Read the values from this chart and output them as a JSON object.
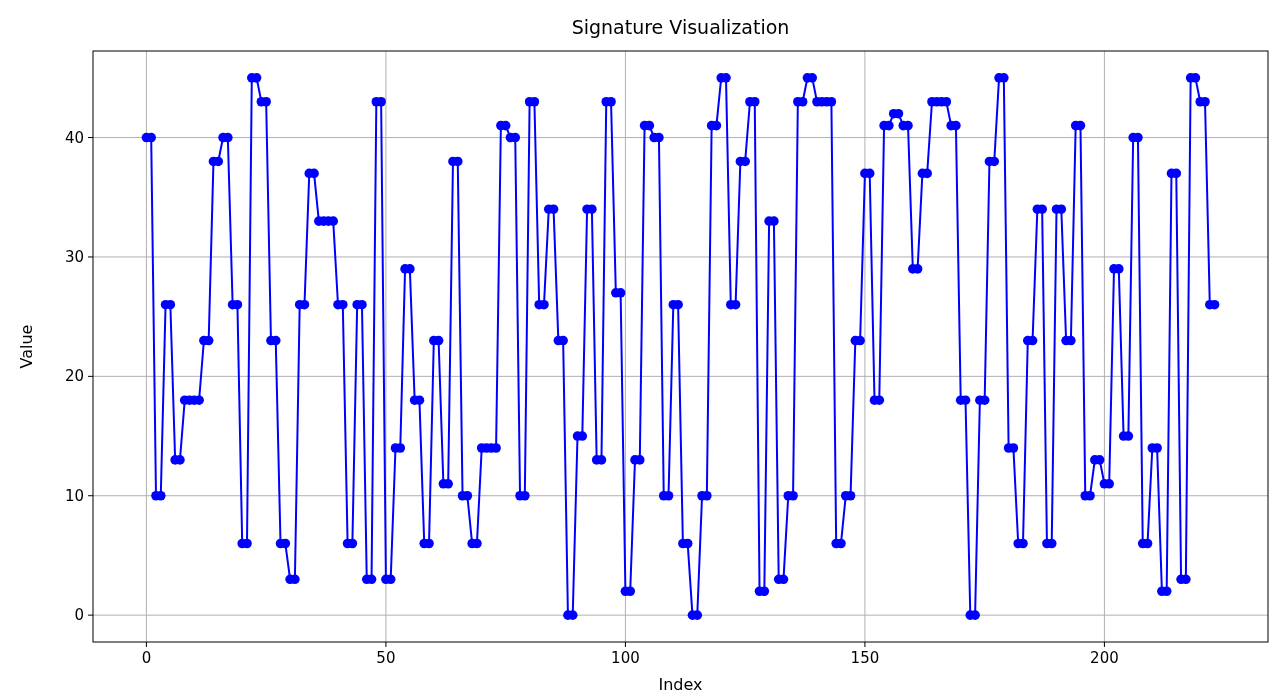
{
  "chart_data": {
    "type": "line",
    "title": "Signature Visualization",
    "xlabel": "Index",
    "ylabel": "Value",
    "x": [
      0,
      1,
      2,
      3,
      4,
      5,
      6,
      7,
      8,
      9,
      10,
      11,
      12,
      13,
      14,
      15,
      16,
      17,
      18,
      19,
      20,
      21,
      22,
      23,
      24,
      25,
      26,
      27,
      28,
      29,
      30,
      31,
      32,
      33,
      34,
      35,
      36,
      37,
      38,
      39,
      40,
      41,
      42,
      43,
      44,
      45,
      46,
      47,
      48,
      49,
      50,
      51,
      52,
      53,
      54,
      55,
      56,
      57,
      58,
      59,
      60,
      61,
      62,
      63,
      64,
      65,
      66,
      67,
      68,
      69,
      70,
      71,
      72,
      73,
      74,
      75,
      76,
      77,
      78,
      79,
      80,
      81,
      82,
      83,
      84,
      85,
      86,
      87,
      88,
      89,
      90,
      91,
      92,
      93,
      94,
      95,
      96,
      97,
      98,
      99,
      100,
      101,
      102,
      103,
      104,
      105,
      106,
      107,
      108,
      109,
      110,
      111,
      112,
      113,
      114,
      115,
      116,
      117,
      118,
      119,
      120,
      121,
      122,
      123,
      124,
      125,
      126,
      127,
      128,
      129,
      130,
      131,
      132,
      133,
      134,
      135,
      136,
      137,
      138,
      139,
      140,
      141,
      142,
      143,
      144,
      145,
      146,
      147,
      148,
      149,
      150,
      151,
      152,
      153,
      154,
      155,
      156,
      157,
      158,
      159,
      160,
      161,
      162,
      163,
      164,
      165,
      166,
      167,
      168,
      169,
      170,
      171,
      172,
      173,
      174,
      175,
      176,
      177,
      178,
      179,
      180,
      181,
      182,
      183,
      184,
      185,
      186,
      187,
      188,
      189,
      190,
      191,
      192,
      193,
      194,
      195,
      196,
      197,
      198,
      199,
      200,
      201,
      202,
      203,
      204,
      205,
      206,
      207,
      208,
      209,
      210,
      211,
      212,
      213,
      214,
      215,
      216,
      217,
      218,
      219,
      220,
      221,
      222,
      223
    ],
    "xlim": [
      -11.15,
      234.15
    ],
    "xticks": [
      0,
      50,
      100,
      150,
      200
    ],
    "ylim": [
      -2.25,
      47.25
    ],
    "yticks": [
      0,
      10,
      20,
      30,
      40
    ],
    "grid": true,
    "marker": "circle",
    "line_style": "solid",
    "series": [
      {
        "color": "#0000ff",
        "values": [
          40,
          40,
          10,
          10,
          26,
          26,
          13,
          13,
          18,
          18,
          18,
          18,
          23,
          23,
          38,
          38,
          40,
          40,
          26,
          26,
          6,
          6,
          45,
          45,
          43,
          43,
          23,
          23,
          6,
          6,
          3,
          3,
          26,
          26,
          37,
          37,
          33,
          33,
          33,
          33,
          26,
          26,
          6,
          6,
          26,
          26,
          3,
          3,
          43,
          43,
          3,
          3,
          14,
          14,
          29,
          29,
          18,
          18,
          6,
          6,
          23,
          23,
          11,
          11,
          38,
          38,
          10,
          10,
          6,
          6,
          14,
          14,
          14,
          14,
          41,
          41,
          40,
          40,
          10,
          10,
          43,
          43,
          26,
          26,
          34,
          34,
          23,
          23,
          0,
          0,
          15,
          15,
          34,
          34,
          13,
          13,
          43,
          43,
          27,
          27,
          2,
          2,
          13,
          13,
          41,
          41,
          40,
          40,
          10,
          10,
          26,
          26,
          6,
          6,
          0,
          0,
          10,
          10,
          41,
          41,
          45,
          45,
          26,
          26,
          38,
          38,
          43,
          43,
          2,
          2,
          33,
          33,
          3,
          3,
          10,
          10,
          43,
          43,
          45,
          45,
          43,
          43,
          43,
          43,
          6,
          6,
          10,
          10,
          23,
          23,
          37,
          37,
          18,
          18,
          41,
          41,
          42,
          42,
          41,
          41,
          29,
          29,
          37,
          37,
          43,
          43,
          43,
          43,
          41,
          41,
          18,
          18,
          0,
          0,
          18,
          18,
          38,
          38,
          45,
          45,
          14,
          14,
          6,
          6,
          23,
          23,
          34,
          34,
          6,
          6,
          34,
          34,
          23,
          23,
          41,
          41,
          10,
          10,
          13,
          13,
          11,
          11,
          29,
          29,
          15,
          15,
          40,
          40,
          6,
          6,
          14,
          14,
          2,
          2,
          37,
          37,
          3,
          3,
          45,
          45,
          43,
          43,
          26,
          26
        ]
      }
    ]
  }
}
